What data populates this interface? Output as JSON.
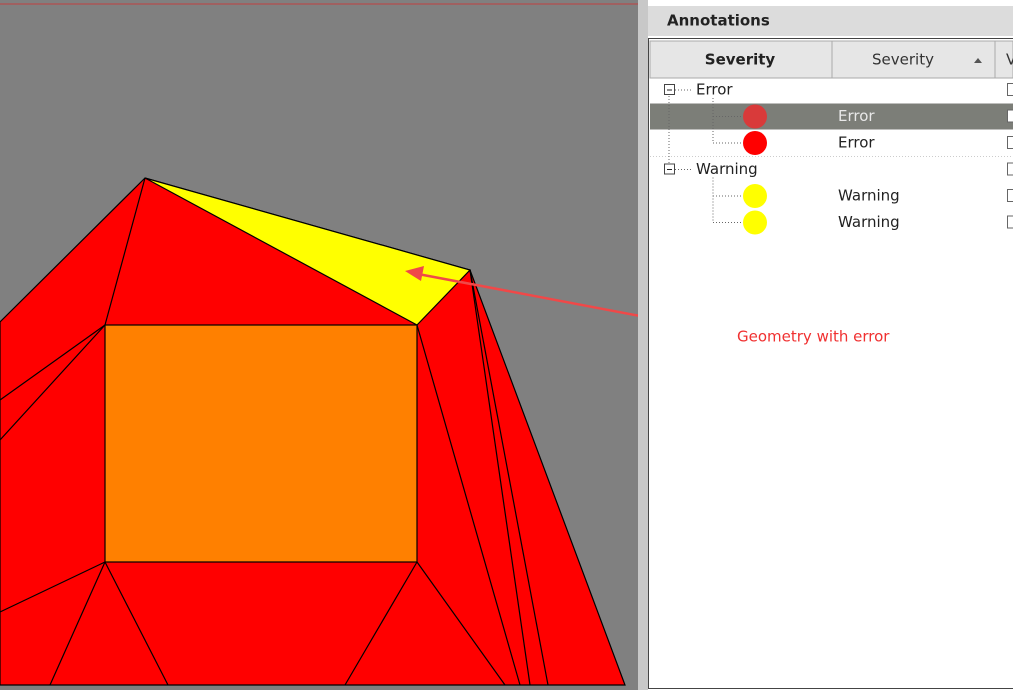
{
  "viewport": {
    "annotation": "Geometry with error"
  },
  "panel": {
    "title": "Annotations",
    "columns": [
      "Severity",
      "Severity",
      "V"
    ],
    "groups": [
      {
        "label": "Error",
        "items": [
          {
            "label": "Error",
            "color": "#d93a3a",
            "selected": true
          },
          {
            "label": "Error",
            "color": "#ff0000",
            "selected": false
          }
        ]
      },
      {
        "label": "Warning",
        "items": [
          {
            "label": "Warning",
            "color": "#ffff00",
            "selected": false
          },
          {
            "label": "Warning",
            "color": "#ffff00",
            "selected": false
          }
        ]
      }
    ]
  }
}
